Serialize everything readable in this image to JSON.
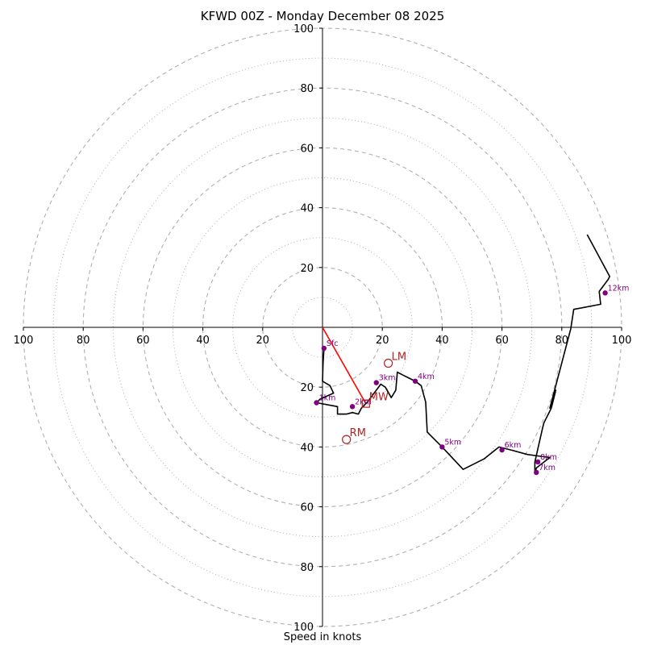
{
  "chart_data": {
    "type": "hodograph",
    "title": "KFWD 00Z - Monday December 08 2025",
    "xlabel": "Speed in knots",
    "ylabel": "",
    "xlim": [
      -100,
      100
    ],
    "ylim": [
      -100,
      100
    ],
    "x_ticks": [
      "100",
      "80",
      "60",
      "40",
      "20",
      "20",
      "40",
      "60",
      "80",
      "100"
    ],
    "x_tick_values": [
      -100,
      -80,
      -60,
      -40,
      -20,
      20,
      40,
      60,
      80,
      100
    ],
    "y_ticks": [
      "100",
      "80",
      "60",
      "40",
      "20",
      "20",
      "40",
      "60",
      "80",
      "100"
    ],
    "y_tick_values": [
      100,
      80,
      60,
      40,
      20,
      -20,
      -40,
      -60,
      -80,
      -100
    ],
    "rings_major": [
      20,
      40,
      60,
      80,
      100
    ],
    "rings_minor": [
      10,
      30,
      50,
      70,
      90
    ],
    "grid": true,
    "series": [
      {
        "name": "wind profile",
        "color": "#000000",
        "points": [
          [
            0.5,
            -7
          ],
          [
            0.2,
            -12
          ],
          [
            0,
            -18
          ],
          [
            2.5,
            -19.5
          ],
          [
            3.7,
            -22
          ],
          [
            -0.8,
            -24
          ],
          [
            -2,
            -25.2
          ],
          [
            5,
            -26.5
          ],
          [
            5,
            -29
          ],
          [
            8,
            -29
          ],
          [
            10,
            -28.5
          ],
          [
            12,
            -29
          ],
          [
            13,
            -27
          ],
          [
            15,
            -25
          ],
          [
            18,
            -21
          ],
          [
            19.5,
            -19
          ],
          [
            21,
            -20
          ],
          [
            23,
            -23.5
          ],
          [
            24.5,
            -21
          ],
          [
            25,
            -15
          ],
          [
            27,
            -16
          ],
          [
            31,
            -18
          ],
          [
            33,
            -19.5
          ],
          [
            34.5,
            -25
          ],
          [
            35,
            -35
          ],
          [
            40,
            -40
          ],
          [
            47,
            -47.5
          ],
          [
            54,
            -44
          ],
          [
            59,
            -40
          ],
          [
            63,
            -41
          ],
          [
            68.5,
            -42.5
          ],
          [
            72,
            -43
          ],
          [
            76,
            -43.5
          ],
          [
            71.5,
            -47
          ],
          [
            71,
            -49
          ],
          [
            71,
            -45
          ],
          [
            73.5,
            -34
          ],
          [
            74,
            -32
          ],
          [
            76.5,
            -27
          ],
          [
            78,
            -21
          ],
          [
            76,
            -27
          ],
          [
            83,
            -0.5
          ],
          [
            84,
            6
          ],
          [
            93,
            7.7
          ],
          [
            92.5,
            12
          ],
          [
            95.5,
            16
          ],
          [
            96,
            17
          ],
          [
            88.5,
            31
          ]
        ]
      }
    ],
    "height_markers": [
      {
        "label": "Sfc",
        "x": 0.5,
        "y": -7
      },
      {
        "label": "1km",
        "x": -2,
        "y": -25.2
      },
      {
        "label": "2km",
        "x": 10,
        "y": -26.5
      },
      {
        "label": "3km",
        "x": 18,
        "y": -18.5
      },
      {
        "label": "4km",
        "x": 31,
        "y": -18
      },
      {
        "label": "5km",
        "x": 40,
        "y": -40
      },
      {
        "label": "6km",
        "x": 60,
        "y": -41
      },
      {
        "label": "7km",
        "x": 71.5,
        "y": -48.5
      },
      {
        "label": "8km",
        "x": 72,
        "y": -45
      },
      {
        "label": "12km",
        "x": 94.5,
        "y": 11.5
      }
    ],
    "storm_motions": [
      {
        "label": "LM",
        "x": 22,
        "y": -12,
        "marker": "circle"
      },
      {
        "label": "MW",
        "x": 14.5,
        "y": -25.5,
        "marker": "square"
      },
      {
        "label": "RM",
        "x": 8,
        "y": -37.5,
        "marker": "circle"
      }
    ],
    "shear_vector": {
      "from": [
        0,
        0
      ],
      "to": [
        14.5,
        -25.5
      ],
      "color": "#ff0000"
    },
    "colors": {
      "grid": "#b0b0b0",
      "profile": "#000000",
      "markers": "#800080",
      "storm_motion": "#b22222",
      "shear": "#ff0000"
    }
  }
}
